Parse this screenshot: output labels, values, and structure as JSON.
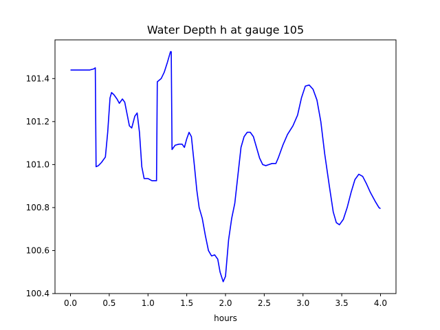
{
  "chart_data": {
    "type": "line",
    "title": "Water Depth h at gauge 105",
    "xlabel": "hours",
    "ylabel": "",
    "xlim": [
      -0.2,
      4.2
    ],
    "ylim": [
      100.4,
      101.58
    ],
    "x_ticks": [
      0.0,
      0.5,
      1.0,
      1.5,
      2.0,
      2.5,
      3.0,
      3.5,
      4.0
    ],
    "x_tick_labels": [
      "0.0",
      "0.5",
      "1.0",
      "1.5",
      "2.0",
      "2.5",
      "3.0",
      "3.5",
      "4.0"
    ],
    "y_ticks": [
      100.4,
      100.6,
      100.8,
      101.0,
      101.2,
      101.4
    ],
    "y_tick_labels": [
      "100.4",
      "100.6",
      "100.8",
      "101.0",
      "101.2",
      "101.4"
    ],
    "grid": false,
    "series": [
      {
        "color": "#0000ff",
        "points": [
          [
            0.0,
            101.44
          ],
          [
            0.15,
            101.44
          ],
          [
            0.25,
            101.44
          ],
          [
            0.3,
            101.445
          ],
          [
            0.32,
            101.45
          ],
          [
            0.33,
            100.99
          ],
          [
            0.36,
            100.995
          ],
          [
            0.4,
            101.01
          ],
          [
            0.45,
            101.035
          ],
          [
            0.48,
            101.15
          ],
          [
            0.51,
            101.31
          ],
          [
            0.53,
            101.335
          ],
          [
            0.56,
            101.325
          ],
          [
            0.6,
            101.305
          ],
          [
            0.63,
            101.285
          ],
          [
            0.67,
            101.305
          ],
          [
            0.7,
            101.29
          ],
          [
            0.73,
            101.235
          ],
          [
            0.76,
            101.18
          ],
          [
            0.79,
            101.17
          ],
          [
            0.83,
            101.225
          ],
          [
            0.86,
            101.24
          ],
          [
            0.89,
            101.15
          ],
          [
            0.92,
            100.99
          ],
          [
            0.95,
            100.935
          ],
          [
            1.0,
            100.935
          ],
          [
            1.05,
            100.925
          ],
          [
            1.11,
            100.925
          ],
          [
            1.12,
            101.385
          ],
          [
            1.17,
            101.4
          ],
          [
            1.21,
            101.43
          ],
          [
            1.25,
            101.475
          ],
          [
            1.29,
            101.525
          ],
          [
            1.3,
            101.525
          ],
          [
            1.31,
            101.07
          ],
          [
            1.35,
            101.09
          ],
          [
            1.4,
            101.095
          ],
          [
            1.44,
            101.095
          ],
          [
            1.47,
            101.08
          ],
          [
            1.5,
            101.12
          ],
          [
            1.53,
            101.15
          ],
          [
            1.56,
            101.13
          ],
          [
            1.6,
            100.99
          ],
          [
            1.63,
            100.88
          ],
          [
            1.66,
            100.8
          ],
          [
            1.7,
            100.75
          ],
          [
            1.74,
            100.67
          ],
          [
            1.78,
            100.6
          ],
          [
            1.82,
            100.575
          ],
          [
            1.86,
            100.58
          ],
          [
            1.9,
            100.56
          ],
          [
            1.93,
            100.5
          ],
          [
            1.97,
            100.455
          ],
          [
            2.0,
            100.48
          ],
          [
            2.04,
            100.65
          ],
          [
            2.08,
            100.75
          ],
          [
            2.12,
            100.82
          ],
          [
            2.16,
            100.95
          ],
          [
            2.2,
            101.08
          ],
          [
            2.24,
            101.13
          ],
          [
            2.28,
            101.15
          ],
          [
            2.32,
            101.15
          ],
          [
            2.36,
            101.13
          ],
          [
            2.4,
            101.08
          ],
          [
            2.44,
            101.03
          ],
          [
            2.48,
            101.0
          ],
          [
            2.52,
            100.995
          ],
          [
            2.56,
            101.0
          ],
          [
            2.6,
            101.005
          ],
          [
            2.65,
            101.005
          ],
          [
            2.68,
            101.03
          ],
          [
            2.74,
            101.09
          ],
          [
            2.8,
            101.14
          ],
          [
            2.87,
            101.18
          ],
          [
            2.93,
            101.23
          ],
          [
            2.98,
            101.31
          ],
          [
            3.03,
            101.365
          ],
          [
            3.08,
            101.37
          ],
          [
            3.13,
            101.35
          ],
          [
            3.18,
            101.3
          ],
          [
            3.23,
            101.2
          ],
          [
            3.28,
            101.05
          ],
          [
            3.34,
            100.9
          ],
          [
            3.39,
            100.78
          ],
          [
            3.43,
            100.73
          ],
          [
            3.47,
            100.72
          ],
          [
            3.52,
            100.745
          ],
          [
            3.57,
            100.8
          ],
          [
            3.62,
            100.87
          ],
          [
            3.67,
            100.93
          ],
          [
            3.72,
            100.955
          ],
          [
            3.77,
            100.945
          ],
          [
            3.82,
            100.91
          ],
          [
            3.87,
            100.87
          ],
          [
            3.93,
            100.83
          ],
          [
            3.98,
            100.8
          ],
          [
            4.0,
            100.795
          ]
        ]
      }
    ]
  }
}
